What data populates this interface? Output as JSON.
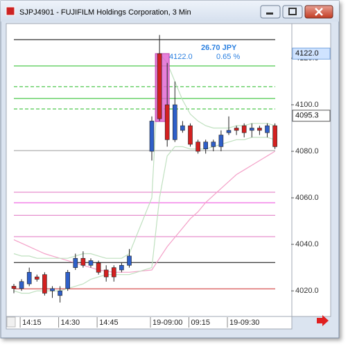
{
  "chart_data": {
    "type": "candlestick",
    "title": "SJPJ4901 - FUJIFILM Holdings Corporation, 3 Min",
    "categories": [
      null,
      "14:15",
      null,
      null,
      null,
      null,
      "14:30",
      null,
      null,
      null,
      null,
      "14:45",
      null,
      null,
      null,
      null,
      "19-09:00",
      null,
      null,
      null,
      null,
      "09:15",
      null,
      null,
      null,
      null,
      "19-09:30",
      null,
      null,
      null,
      null,
      null,
      null
    ],
    "open": [
      4022,
      4021,
      4023,
      4026,
      4027,
      4020,
      4018,
      4021,
      4030,
      4034,
      4031,
      4032,
      4029,
      4030,
      4029,
      4031,
      4080,
      4122,
      4100,
      4085,
      4089,
      4091,
      4084,
      4081,
      4082,
      4082,
      4088,
      4090,
      4091,
      4089,
      4090,
      4088,
      4091
    ],
    "high": [
      4023,
      4025,
      4030,
      4027,
      4028,
      4022,
      4022,
      4029,
      4036,
      4037,
      4034,
      4033,
      4031,
      4031,
      4032,
      4038,
      4095,
      4130,
      4118,
      4110,
      4093,
      4092,
      4085,
      4085,
      4085,
      4089,
      4095,
      4091,
      4092,
      4092,
      4091,
      4092,
      4092
    ],
    "low": [
      4019,
      4020,
      4022,
      4024,
      4018,
      4017,
      4015,
      4020,
      4029,
      4030,
      4030,
      4027,
      4024,
      4024,
      4028,
      4030,
      4076,
      4093,
      4082,
      4084,
      4088,
      4082,
      4079,
      4079,
      4080,
      4080,
      4087,
      4087,
      4086,
      4086,
      4087,
      4086,
      4081
    ],
    "close": [
      4021,
      4024,
      4028,
      4025,
      4019,
      4021,
      4020,
      4028,
      4034,
      4031,
      4033,
      4028,
      4026,
      4026,
      4031,
      4035,
      4093,
      4094,
      4085,
      4100,
      4091,
      4083,
      4080,
      4084,
      4084,
      4087,
      4089,
      4089,
      4088,
      4090,
      4089,
      4091,
      4082
    ],
    "up_color": "#2f5fc8",
    "down_color": "#d42020",
    "overlays": [
      {
        "color": "#f4a0c8",
        "values": [
          4042,
          4040.5,
          4039,
          4037.5,
          4036,
          4035,
          4034,
          4033,
          4032,
          4031,
          4030,
          4029,
          4028.5,
          4028,
          4028,
          4028,
          4029,
          4034,
          4039,
          4043,
          4047,
          4051,
          4054,
          4058,
          4061,
          4064,
          4067,
          4070,
          4072,
          4074,
          4076,
          4078,
          4080
        ]
      },
      {
        "color": "#bfe0bf",
        "values": [
          4036,
          4035,
          4035,
          4034,
          4034,
          4034,
          4034,
          4034,
          4035,
          4036,
          4036,
          4035,
          4034,
          4034,
          4034,
          4036,
          4060,
          4122,
          4118,
          4110,
          4102,
          4096,
          4093,
          4091,
          4090,
          4090,
          4090,
          4091,
          4091,
          4092,
          4092,
          4092,
          4091
        ]
      },
      {
        "color": "#bfe0bf",
        "values": [
          4020,
          4019,
          4019,
          4020,
          4020,
          4020,
          4020,
          4021,
          4022,
          4023,
          4025,
          4026,
          4027,
          4027,
          4027,
          4027,
          4030,
          4060,
          4078,
          4082,
          4082,
          4081,
          4081,
          4081,
          4082,
          4083,
          4084,
          4085,
          4085,
          4086,
          4086,
          4086,
          4085
        ]
      }
    ],
    "levels": [
      {
        "value": 4128,
        "color": "#000000",
        "dash": false
      },
      {
        "value": 4116.7,
        "color": "#22bb22",
        "dash": false
      },
      {
        "value": 4107.8,
        "color": "#22bb22",
        "dash": true
      },
      {
        "value": 4102.7,
        "color": "#22bb22",
        "dash": false
      },
      {
        "value": 4098.2,
        "color": "#22bb22",
        "dash": true
      },
      {
        "value": 4080.3,
        "color": "#999999",
        "dash": false
      },
      {
        "value": 4062.4,
        "color": "#e070c0",
        "dash": false
      },
      {
        "value": 4057.9,
        "color": "#ee44dd",
        "dash": false
      },
      {
        "value": 4052.5,
        "color": "#e070c0",
        "dash": false
      },
      {
        "value": 4043.3,
        "color": "#e070c0",
        "dash": false
      },
      {
        "value": 4032.2,
        "color": "#000000",
        "dash": false
      },
      {
        "value": 4020.9,
        "color": "#cc2222",
        "dash": false
      }
    ],
    "ylim": [
      4009.3,
      4134.6
    ],
    "yticks": [
      {
        "value": 4020,
        "label": "4020.0"
      },
      {
        "value": 4040,
        "label": "4040.0"
      },
      {
        "value": 4060,
        "label": "4060.0"
      },
      {
        "value": 4080,
        "label": "4080.0"
      },
      {
        "value": 4100,
        "label": "4100.0"
      },
      {
        "value": 4120,
        "label": "4120.0"
      }
    ],
    "price_labels": [
      {
        "value": 4122.0,
        "label": "4122.0"
      },
      {
        "value": 4095.3,
        "label": "4095.3"
      }
    ],
    "annotation": {
      "line1": "26.70 JPY",
      "line2a": "4122.0",
      "line2b": "0.65 %"
    }
  }
}
